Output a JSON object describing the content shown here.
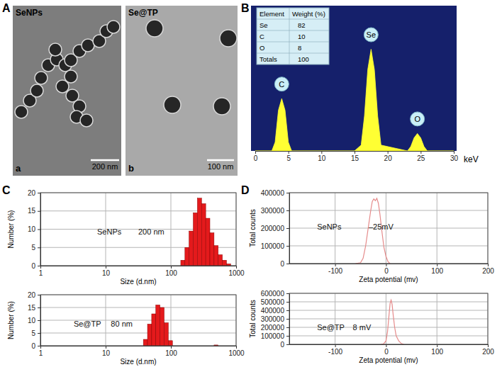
{
  "panel_labels": [
    "A",
    "B",
    "C",
    "D"
  ],
  "images": [
    {
      "title": "SeNPs",
      "label": "a",
      "scale_bar": "200 nm"
    },
    {
      "title": "Se@TP",
      "label": "b",
      "scale_bar": "100 nm"
    }
  ],
  "chart_data": [
    {
      "type": "area",
      "color": "#ffff33",
      "x": [
        0,
        2.5,
        3,
        3.5,
        4,
        4.5,
        5,
        5.5,
        15,
        16,
        16.5,
        17,
        17.5,
        18,
        18.5,
        19,
        23,
        23.5,
        24,
        24.5,
        25,
        25.5,
        26,
        30
      ],
      "values": [
        0,
        0,
        6,
        28,
        36,
        28,
        6,
        0,
        0,
        4,
        24,
        56,
        70,
        56,
        24,
        4,
        0,
        3,
        9,
        12,
        9,
        3,
        0,
        0
      ],
      "xlim": [
        0,
        30
      ],
      "xticks": [
        0,
        5,
        10,
        15,
        20,
        25,
        30
      ],
      "ylim": [
        0,
        100
      ],
      "tick_labels": "x",
      "x_label": "keV",
      "annotations": [
        {
          "text": "C",
          "x": 4,
          "y": 46
        },
        {
          "text": "Se",
          "x": 17.5,
          "y": 80
        },
        {
          "text": "O",
          "x": 24.5,
          "y": 22
        }
      ],
      "table": {
        "header": [
          "Element",
          "Weight (%)"
        ],
        "rows": [
          [
            "Se",
            82
          ],
          [
            "C",
            10
          ],
          [
            "O",
            8
          ],
          [
            "Totals",
            100
          ]
        ]
      }
    },
    {
      "type": "histogram",
      "color": "#e41a1c",
      "log": "x",
      "grid": true,
      "bins": [
        141.8,
        164.2,
        190.1,
        220.2,
        255.0,
        295.3,
        342.0,
        396.1,
        458.7,
        531.2,
        615.1,
        712.4,
        825.0
      ],
      "counts": [
        1.5,
        5,
        9.5,
        14.5,
        18.5,
        17,
        13,
        9,
        5.5,
        3,
        1.5,
        0.5
      ],
      "xlim": [
        1,
        1000
      ],
      "xticks": [
        1,
        10,
        100,
        1000
      ],
      "ylim": [
        0,
        20
      ],
      "yticks": [
        0,
        5,
        10,
        15,
        20
      ],
      "x_label": "Size (d.nm)",
      "y_label": "Number (%)",
      "annotations": [
        "SeNPs",
        "200 nm"
      ]
    },
    {
      "type": "histogram",
      "color": "#e41a1c",
      "log": "x",
      "grid": true,
      "bins": [
        37.84,
        43.82,
        50.75,
        58.77,
        68.06,
        78.82,
        91.28,
        105.7,
        122.4,
        141.8,
        164.2,
        190.1,
        220.2,
        255.0,
        295.3,
        342.0,
        396.1,
        458.7,
        531.2
      ],
      "counts": [
        2.5,
        8.5,
        12.5,
        16,
        15,
        9,
        2,
        0,
        0,
        0,
        0,
        0,
        0,
        0,
        0,
        0,
        0,
        0.3
      ],
      "xlim": [
        1,
        1000
      ],
      "xticks": [
        1,
        10,
        100,
        1000
      ],
      "ylim": [
        0,
        20
      ],
      "yticks": [
        0,
        5,
        10,
        15,
        20
      ],
      "x_label": "Size (d.nm)",
      "y_label": "Number (%)",
      "annotations": [
        "Se@TP",
        "80 nm"
      ]
    },
    {
      "type": "line",
      "color": "#e58a8a",
      "grid": true,
      "x": [
        -60,
        -50,
        -45,
        -40,
        -35,
        -30,
        -27,
        -24,
        -21,
        -18,
        -15,
        -12,
        -8,
        -4,
        0,
        4,
        8
      ],
      "values": [
        0,
        5000,
        30000,
        100000,
        200000,
        300000,
        350000,
        365000,
        355000,
        368000,
        340000,
        280000,
        180000,
        90000,
        40000,
        10000,
        0
      ],
      "xlim": [
        -190,
        200
      ],
      "xticks": [
        -100,
        0,
        100,
        200
      ],
      "ylim": [
        0,
        400000
      ],
      "yticks": [
        0,
        100000,
        200000,
        300000,
        400000
      ],
      "x_label": "Zeta potential (mv)",
      "y_label": "Total counts",
      "annotations": [
        "SeNPs",
        "–25mV"
      ]
    },
    {
      "type": "line",
      "color": "#e58a8a",
      "grid": true,
      "x": [
        -10,
        -5,
        0,
        3,
        6,
        8,
        10,
        12,
        14,
        17,
        20,
        25,
        30,
        35
      ],
      "values": [
        0,
        5000,
        40000,
        150000,
        350000,
        480000,
        520000,
        470000,
        350000,
        200000,
        100000,
        40000,
        10000,
        0
      ],
      "xlim": [
        -190,
        200
      ],
      "xticks": [
        -100,
        0,
        100,
        200
      ],
      "ylim": [
        0,
        600000
      ],
      "yticks": [
        0,
        100000,
        200000,
        300000,
        400000,
        500000,
        600000
      ],
      "x_label": "Zeta potential (mv)",
      "y_label": "Total counts",
      "annotations": [
        "Se@TP",
        "8 mV"
      ]
    }
  ]
}
